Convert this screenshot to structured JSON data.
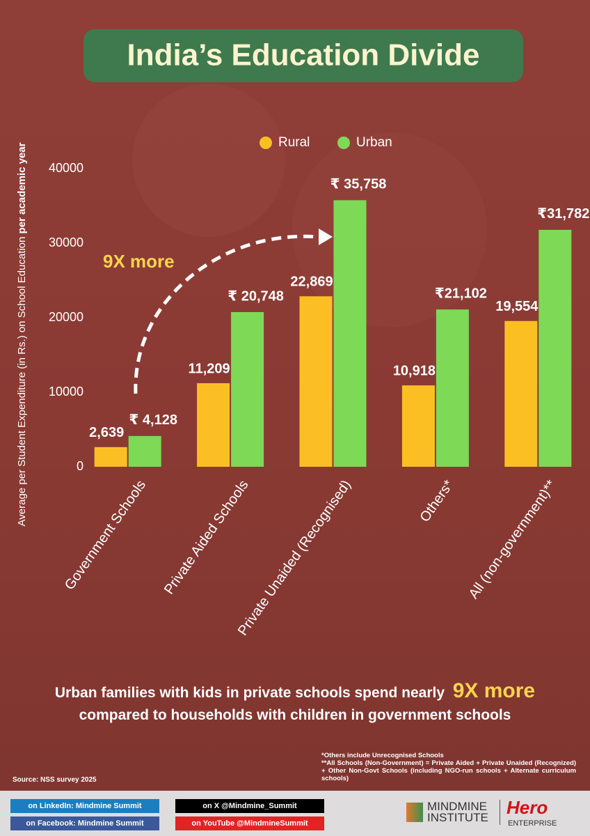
{
  "chart_data": {
    "type": "bar",
    "title": "India’s Education Divide",
    "ylabel": {
      "text": "Average per Student Expenditure (in Rs.) on School Education",
      "emphasis": "per academic year"
    },
    "categories": [
      "Government Schools",
      "Private Aided Schools",
      "Private Unaided (Recognised)",
      "Others*",
      "All (non-government)**"
    ],
    "series": [
      {
        "name": "Rural",
        "color": "#fbbf24",
        "values": [
          2639,
          11209,
          22869,
          10918,
          19554
        ],
        "value_labels": [
          "2,639",
          "11,209",
          "22,869",
          "10,918",
          "19,554"
        ]
      },
      {
        "name": "Urban",
        "color": "#7ed957",
        "values": [
          4128,
          20748,
          35758,
          21102,
          31782
        ],
        "value_labels": [
          "₹ 4,128",
          "₹ 20,748",
          "₹ 35,758",
          "₹21,102",
          "₹31,782"
        ]
      }
    ],
    "ylim": [
      0,
      40000
    ],
    "yticks": [
      0,
      10000,
      20000,
      30000,
      40000
    ],
    "grid": false,
    "legend": "top",
    "annotation": "9X more"
  },
  "footer": {
    "headline_start": "Urban families with kids in private schools spend nearly",
    "headline_emphasis": "9X more",
    "headline_end": "compared to  households with children in government schools",
    "notes": [
      "*Others include Unrecognised Schools",
      "**All Schools (Non-Government) = Private Aided + Private Unaided (Recognized) + Other Non-Govt Schools (including NGO-run schools + Alternate curriculum schools)"
    ],
    "source": "Source: NSS survey 2025",
    "social": [
      "on LinkedIn: Mindmine Summit",
      "on Facebook: Mindmine Summit",
      "on X @Mindmine_Summit",
      "on YouTube @MindmineSummit"
    ],
    "brands": [
      "MINDMINE",
      "INSTITUTE",
      "Hero",
      "ENTERPRISE"
    ]
  }
}
